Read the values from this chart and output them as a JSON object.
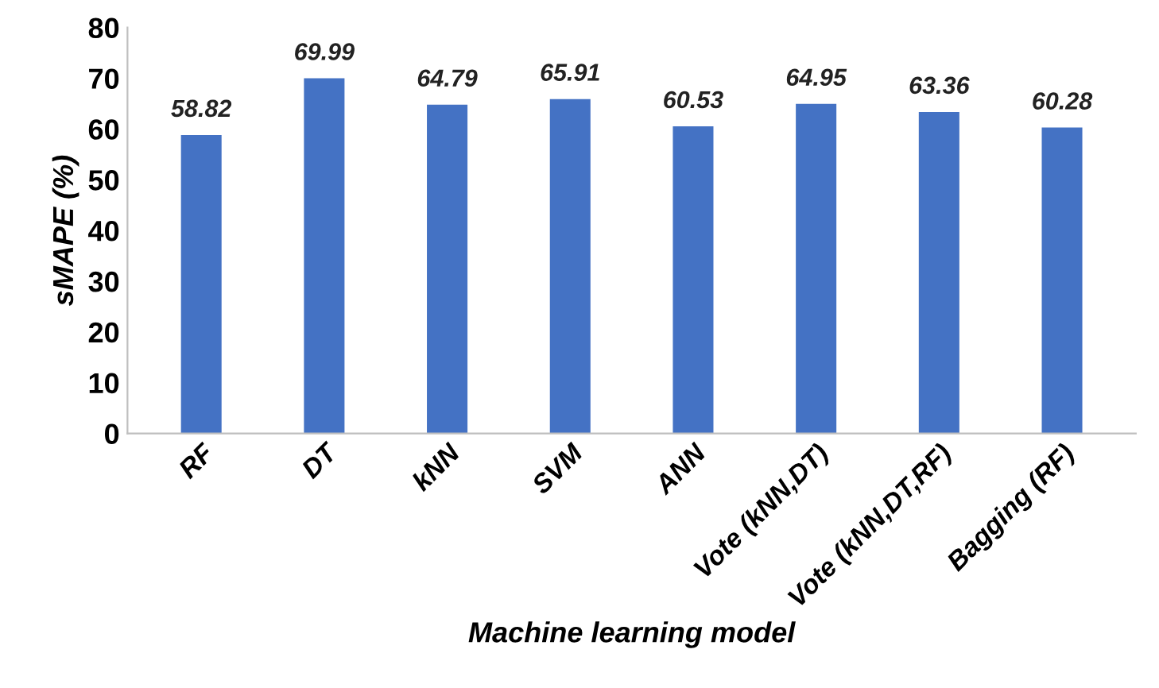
{
  "chart_data": {
    "type": "bar",
    "categories": [
      "RF",
      "DT",
      "kNN",
      "SVM",
      "ANN",
      "Vote (kNN,DT)",
      "Vote (kNN,DT,RF)",
      "Bagging (RF)"
    ],
    "values": [
      58.82,
      69.99,
      64.79,
      65.91,
      60.53,
      64.95,
      63.36,
      60.28
    ],
    "color": "#4472c4",
    "xlabel": "Machine learning model",
    "ylabel": "sMAPE (%)",
    "ylim": [
      0,
      80
    ],
    "yticks": [
      0,
      10,
      20,
      30,
      40,
      50,
      60,
      70,
      80
    ],
    "data_labels": true,
    "grid": false,
    "legend": false
  }
}
